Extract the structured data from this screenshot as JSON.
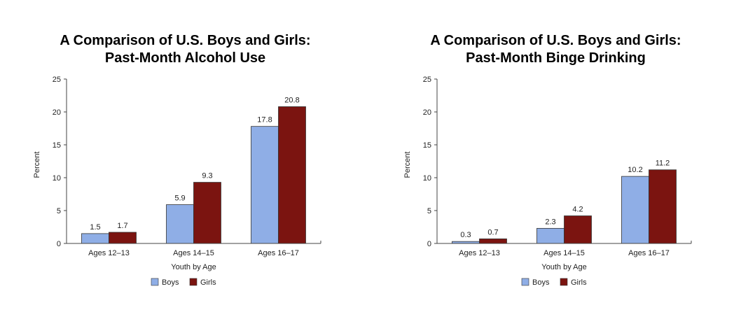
{
  "colors": {
    "boys": "#8faee6",
    "girls": "#7b1410",
    "axis": "#444444"
  },
  "chart_data": [
    {
      "type": "bar",
      "title_line1": "A Comparison of U.S. Boys and Girls:",
      "title_line2": "Past-Month Alcohol Use",
      "xlabel": "Youth by Age",
      "ylabel": "Percent",
      "ylim": [
        0,
        25
      ],
      "yticks": [
        "0",
        "5",
        "10",
        "15",
        "20",
        "25"
      ],
      "categories": [
        "Ages 12–13",
        "Ages 14–15",
        "Ages 16–17"
      ],
      "series": [
        {
          "name": "Boys",
          "values": [
            1.5,
            5.9,
            17.8
          ],
          "labels": [
            "1.5",
            "5.9",
            "17.8"
          ]
        },
        {
          "name": "Girls",
          "values": [
            1.7,
            9.3,
            20.8
          ],
          "labels": [
            "1.7",
            "9.3",
            "20.8"
          ]
        }
      ],
      "legend_position": "bottom-center",
      "grid": false
    },
    {
      "type": "bar",
      "title_line1": "A Comparison of U.S. Boys and Girls:",
      "title_line2": "Past-Month Binge Drinking",
      "xlabel": "Youth by Age",
      "ylabel": "Percent",
      "ylim": [
        0,
        25
      ],
      "yticks": [
        "0",
        "5",
        "10",
        "15",
        "20",
        "25"
      ],
      "categories": [
        "Ages 12–13",
        "Ages 14–15",
        "Ages 16–17"
      ],
      "series": [
        {
          "name": "Boys",
          "values": [
            0.3,
            2.3,
            10.2
          ],
          "labels": [
            "0.3",
            "2.3",
            "10.2"
          ]
        },
        {
          "name": "Girls",
          "values": [
            0.7,
            4.2,
            11.2
          ],
          "labels": [
            "0.7",
            "4.2",
            "11.2"
          ]
        }
      ],
      "legend_position": "bottom-center",
      "grid": false
    }
  ]
}
